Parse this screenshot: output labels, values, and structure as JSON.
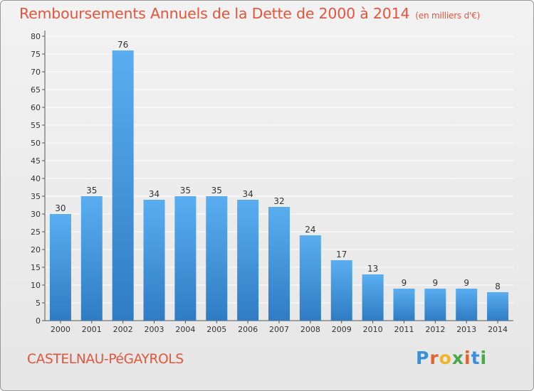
{
  "title": "Remboursements Annuels de la Dette de 2000 à 2014",
  "unit": "(en milliers d'€)",
  "commune": "CASTELNAU-PéGAYROLS",
  "logo": {
    "letters": [
      "P",
      "r",
      "o",
      "x",
      "i",
      "t",
      "i"
    ],
    "colors": [
      "#3b8fd9",
      "#e2632f",
      "#f0b429",
      "#4aa84a",
      "#e2632f",
      "#3b8fd9",
      "#4aa84a"
    ]
  },
  "colors": {
    "bar_light": "#5aaef0",
    "bar_dark": "#2f7cc4",
    "title": "#e4553c",
    "grid": "#ffffff"
  },
  "chart_data": {
    "type": "bar",
    "categories": [
      "2000",
      "2001",
      "2002",
      "2003",
      "2004",
      "2005",
      "2006",
      "2007",
      "2008",
      "2009",
      "2010",
      "2011",
      "2012",
      "2013",
      "2014"
    ],
    "values": [
      30,
      35,
      76,
      34,
      35,
      35,
      34,
      32,
      24,
      17,
      13,
      9,
      9,
      9,
      8
    ],
    "y_ticks": [
      0,
      5,
      10,
      15,
      20,
      25,
      30,
      35,
      40,
      45,
      50,
      55,
      60,
      65,
      70,
      75,
      80
    ],
    "ylim": [
      0,
      80
    ],
    "grid": true
  }
}
